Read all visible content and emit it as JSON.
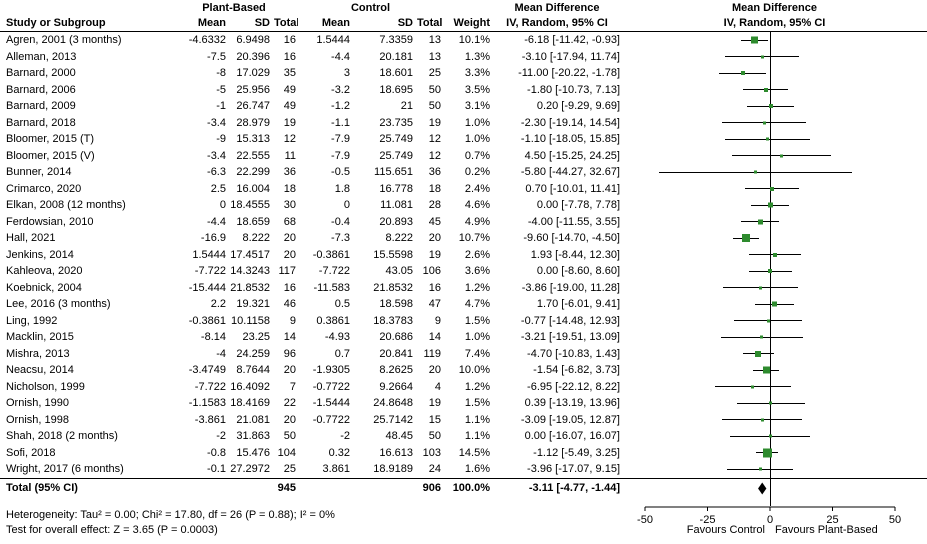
{
  "columns": {
    "study": "Study or Subgroup",
    "group1": "Plant-Based",
    "group2": "Control",
    "mean": "Mean",
    "sd": "SD",
    "total": "Total",
    "weight": "Weight",
    "md": "Mean Difference",
    "md_sub": "IV, Random, 95% CI"
  },
  "footer": {
    "heterogeneity": "Heterogeneity: Tau² = 0.00; Chi² = 17.80, df = 26 (P = 0.88); I² = 0%",
    "overall_effect": "Test for overall effect: Z = 3.65 (P = 0.0003)"
  },
  "chart_data": {
    "type": "forest",
    "effect_measure": "Mean Difference",
    "model": "IV, Random, 95% CI",
    "xlim": [
      -50,
      50
    ],
    "x_ticks": [
      "-50",
      "-25",
      "0",
      "25",
      "50"
    ],
    "favours_left": "Favours Control",
    "favours_right": "Favours Plant-Based",
    "marker_color": "#2E8B2E",
    "diamond_color": "#000000",
    "line_color": "#000000",
    "studies": [
      {
        "study": "Agren, 2001 (3 months)",
        "pb_mean": "-4.6332",
        "pb_sd": "6.9498",
        "pb_n": "16",
        "c_mean": "1.5444",
        "c_sd": "7.3359",
        "c_n": "13",
        "weight": "10.1%",
        "ci": "-6.18 [-11.42, -0.93]"
      },
      {
        "study": "Alleman, 2013",
        "pb_mean": "-7.5",
        "pb_sd": "20.396",
        "pb_n": "16",
        "c_mean": "-4.4",
        "c_sd": "20.181",
        "c_n": "13",
        "weight": "1.3%",
        "ci": "-3.10 [-17.94, 11.74]"
      },
      {
        "study": "Barnard, 2000",
        "pb_mean": "-8",
        "pb_sd": "17.029",
        "pb_n": "35",
        "c_mean": "3",
        "c_sd": "18.601",
        "c_n": "25",
        "weight": "3.3%",
        "ci": "-11.00 [-20.22, -1.78]"
      },
      {
        "study": "Barnard, 2006",
        "pb_mean": "-5",
        "pb_sd": "25.956",
        "pb_n": "49",
        "c_mean": "-3.2",
        "c_sd": "18.695",
        "c_n": "50",
        "weight": "3.5%",
        "ci": "-1.80 [-10.73, 7.13]"
      },
      {
        "study": "Barnard, 2009",
        "pb_mean": "-1",
        "pb_sd": "26.747",
        "pb_n": "49",
        "c_mean": "-1.2",
        "c_sd": "21",
        "c_n": "50",
        "weight": "3.1%",
        "ci": "0.20 [-9.29, 9.69]"
      },
      {
        "study": "Barnard, 2018",
        "pb_mean": "-3.4",
        "pb_sd": "28.979",
        "pb_n": "19",
        "c_mean": "-1.1",
        "c_sd": "23.735",
        "c_n": "19",
        "weight": "1.0%",
        "ci": "-2.30 [-19.14, 14.54]"
      },
      {
        "study": "Bloomer, 2015 (T)",
        "pb_mean": "-9",
        "pb_sd": "15.313",
        "pb_n": "12",
        "c_mean": "-7.9",
        "c_sd": "25.749",
        "c_n": "12",
        "weight": "1.0%",
        "ci": "-1.10 [-18.05, 15.85]"
      },
      {
        "study": "Bloomer, 2015 (V)",
        "pb_mean": "-3.4",
        "pb_sd": "22.555",
        "pb_n": "11",
        "c_mean": "-7.9",
        "c_sd": "25.749",
        "c_n": "12",
        "weight": "0.7%",
        "ci": "4.50 [-15.25, 24.25]"
      },
      {
        "study": "Bunner, 2014",
        "pb_mean": "-6.3",
        "pb_sd": "22.299",
        "pb_n": "36",
        "c_mean": "-0.5",
        "c_sd": "115.651",
        "c_n": "36",
        "weight": "0.2%",
        "ci": "-5.80 [-44.27, 32.67]"
      },
      {
        "study": "Crimarco, 2020",
        "pb_mean": "2.5",
        "pb_sd": "16.004",
        "pb_n": "18",
        "c_mean": "1.8",
        "c_sd": "16.778",
        "c_n": "18",
        "weight": "2.4%",
        "ci": "0.70 [-10.01, 11.41]"
      },
      {
        "study": "Elkan, 2008 (12 months)",
        "pb_mean": "0",
        "pb_sd": "18.4555",
        "pb_n": "30",
        "c_mean": "0",
        "c_sd": "11.081",
        "c_n": "28",
        "weight": "4.6%",
        "ci": "0.00 [-7.78, 7.78]"
      },
      {
        "study": "Ferdowsian, 2010",
        "pb_mean": "-4.4",
        "pb_sd": "18.659",
        "pb_n": "68",
        "c_mean": "-0.4",
        "c_sd": "20.893",
        "c_n": "45",
        "weight": "4.9%",
        "ci": "-4.00 [-11.55, 3.55]"
      },
      {
        "study": "Hall, 2021",
        "pb_mean": "-16.9",
        "pb_sd": "8.222",
        "pb_n": "20",
        "c_mean": "-7.3",
        "c_sd": "8.222",
        "c_n": "20",
        "weight": "10.7%",
        "ci": "-9.60 [-14.70, -4.50]"
      },
      {
        "study": "Jenkins, 2014",
        "pb_mean": "1.5444",
        "pb_sd": "17.4517",
        "pb_n": "20",
        "c_mean": "-0.3861",
        "c_sd": "15.5598",
        "c_n": "19",
        "weight": "2.6%",
        "ci": "1.93 [-8.44, 12.30]"
      },
      {
        "study": "Kahleova, 2020",
        "pb_mean": "-7.722",
        "pb_sd": "14.3243",
        "pb_n": "117",
        "c_mean": "-7.722",
        "c_sd": "43.05",
        "c_n": "106",
        "weight": "3.6%",
        "ci": "0.00 [-8.60, 8.60]"
      },
      {
        "study": "Koebnick, 2004",
        "pb_mean": "-15.444",
        "pb_sd": "21.8532",
        "pb_n": "16",
        "c_mean": "-11.583",
        "c_sd": "21.8532",
        "c_n": "16",
        "weight": "1.2%",
        "ci": "-3.86 [-19.00, 11.28]"
      },
      {
        "study": "Lee, 2016 (3 months)",
        "pb_mean": "2.2",
        "pb_sd": "19.321",
        "pb_n": "46",
        "c_mean": "0.5",
        "c_sd": "18.598",
        "c_n": "47",
        "weight": "4.7%",
        "ci": "1.70 [-6.01, 9.41]"
      },
      {
        "study": "Ling, 1992",
        "pb_mean": "-0.3861",
        "pb_sd": "10.1158",
        "pb_n": "9",
        "c_mean": "0.3861",
        "c_sd": "18.3783",
        "c_n": "9",
        "weight": "1.5%",
        "ci": "-0.77 [-14.48, 12.93]"
      },
      {
        "study": "Macklin, 2015",
        "pb_mean": "-8.14",
        "pb_sd": "23.25",
        "pb_n": "14",
        "c_mean": "-4.93",
        "c_sd": "20.686",
        "c_n": "14",
        "weight": "1.0%",
        "ci": "-3.21 [-19.51, 13.09]"
      },
      {
        "study": "Mishra, 2013",
        "pb_mean": "-4",
        "pb_sd": "24.259",
        "pb_n": "96",
        "c_mean": "0.7",
        "c_sd": "20.841",
        "c_n": "119",
        "weight": "7.4%",
        "ci": "-4.70 [-10.83, 1.43]"
      },
      {
        "study": "Neacsu, 2014",
        "pb_mean": "-3.4749",
        "pb_sd": "8.7644",
        "pb_n": "20",
        "c_mean": "-1.9305",
        "c_sd": "8.2625",
        "c_n": "20",
        "weight": "10.0%",
        "ci": "-1.54 [-6.82, 3.73]"
      },
      {
        "study": "Nicholson, 1999",
        "pb_mean": "-7.722",
        "pb_sd": "16.4092",
        "pb_n": "7",
        "c_mean": "-0.7722",
        "c_sd": "9.2664",
        "c_n": "4",
        "weight": "1.2%",
        "ci": "-6.95 [-22.12, 8.22]"
      },
      {
        "study": "Ornish, 1990",
        "pb_mean": "-1.1583",
        "pb_sd": "18.4169",
        "pb_n": "22",
        "c_mean": "-1.5444",
        "c_sd": "24.8648",
        "c_n": "19",
        "weight": "1.5%",
        "ci": "0.39 [-13.19, 13.96]"
      },
      {
        "study": "Ornish, 1998",
        "pb_mean": "-3.861",
        "pb_sd": "21.081",
        "pb_n": "20",
        "c_mean": "-0.7722",
        "c_sd": "25.7142",
        "c_n": "15",
        "weight": "1.1%",
        "ci": "-3.09 [-19.05, 12.87]"
      },
      {
        "study": "Shah, 2018 (2 months)",
        "pb_mean": "-2",
        "pb_sd": "31.863",
        "pb_n": "50",
        "c_mean": "-2",
        "c_sd": "48.45",
        "c_n": "50",
        "weight": "1.1%",
        "ci": "0.00 [-16.07, 16.07]"
      },
      {
        "study": "Sofi, 2018",
        "pb_mean": "-0.8",
        "pb_sd": "15.476",
        "pb_n": "104",
        "c_mean": "0.32",
        "c_sd": "16.613",
        "c_n": "103",
        "weight": "14.5%",
        "ci": "-1.12 [-5.49, 3.25]"
      },
      {
        "study": "Wright, 2017 (6 months)",
        "pb_mean": "-0.1",
        "pb_sd": "27.2972",
        "pb_n": "25",
        "c_mean": "3.861",
        "c_sd": "18.9189",
        "c_n": "24",
        "weight": "1.6%",
        "ci": "-3.96 [-17.07, 9.15]"
      }
    ],
    "total": {
      "label": "Total (95% CI)",
      "pb_n": "945",
      "c_n": "906",
      "weight": "100.0%",
      "ci": "-3.11 [-4.77, -1.44]"
    }
  }
}
